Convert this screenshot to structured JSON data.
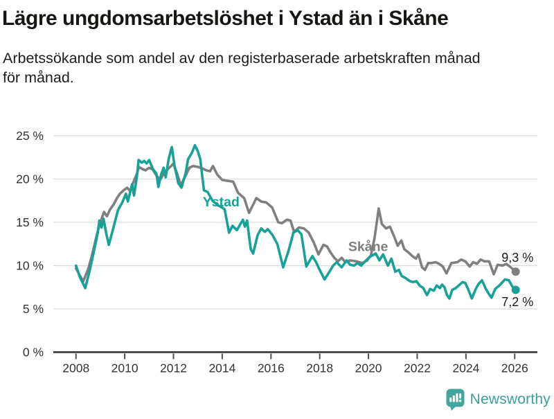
{
  "title": "Lägre ungdomsarbetslöshet i Ystad än i Skåne",
  "subtitle": {
    "line1": "Arbetssökande som andel av den registerbaserade arbetskraften månad",
    "line2": "för månad."
  },
  "footer": {
    "brand": "Newsworthy",
    "logo_icon": "bar-chart-speech-bubble-icon"
  },
  "colors": {
    "ystad": "#17a197",
    "skane": "#7f7f7f",
    "grid": "#dbdbdb",
    "axis": "#4d4d4d",
    "tick_label": "#333333",
    "value_label": "#1a1a1a",
    "brand_teal": "#44a59e",
    "background": "#ffffff"
  },
  "chart_data": {
    "type": "line",
    "unit": "%",
    "grid": "horizontal",
    "legend_position": "inline-labels",
    "xlim": [
      2007.07,
      2026.93
    ],
    "ylim": [
      0,
      25
    ],
    "x_ticks": [
      2008,
      2010,
      2012,
      2014,
      2016,
      2018,
      2020,
      2022,
      2024,
      2026
    ],
    "x_tick_labels": [
      "2008",
      "2010",
      "2012",
      "2014",
      "2016",
      "2018",
      "2020",
      "2022",
      "2024",
      "2026"
    ],
    "y_ticks": [
      0,
      5,
      10,
      15,
      20,
      25
    ],
    "y_tick_labels": [
      "0 %",
      "5 %",
      "10 %",
      "15 %",
      "20 %",
      "25 %"
    ],
    "series": [
      {
        "name": "Skåne",
        "color": "#7f7f7f",
        "label": {
          "text": "Skåne",
          "x": 2019.17,
          "y": 11.68
        },
        "end_label": {
          "text": "9,3 %",
          "x": 2025.46,
          "y": 10.44
        },
        "end_value": 9.3,
        "points": [
          [
            2008.0,
            9.7
          ],
          [
            2008.15,
            8.9
          ],
          [
            2008.3,
            8.2
          ],
          [
            2008.5,
            9.6
          ],
          [
            2008.65,
            11.1
          ],
          [
            2008.85,
            13.5
          ],
          [
            2009.0,
            15.0
          ],
          [
            2009.15,
            16.2
          ],
          [
            2009.27,
            15.7
          ],
          [
            2009.4,
            16.5
          ],
          [
            2009.55,
            17.1
          ],
          [
            2009.68,
            17.8
          ],
          [
            2009.8,
            18.3
          ],
          [
            2009.95,
            18.7
          ],
          [
            2010.1,
            19.0
          ],
          [
            2010.22,
            18.6
          ],
          [
            2010.35,
            19.6
          ],
          [
            2010.5,
            20.6
          ],
          [
            2010.58,
            21.4
          ],
          [
            2010.7,
            21.2
          ],
          [
            2010.85,
            21.0
          ],
          [
            2011.0,
            21.3
          ],
          [
            2011.15,
            21.1
          ],
          [
            2011.3,
            20.4
          ],
          [
            2011.45,
            19.9
          ],
          [
            2011.6,
            20.6
          ],
          [
            2011.75,
            21.1
          ],
          [
            2011.9,
            21.5
          ],
          [
            2012.0,
            21.8
          ],
          [
            2012.15,
            20.6
          ],
          [
            2012.3,
            19.3
          ],
          [
            2012.5,
            20.4
          ],
          [
            2012.65,
            21.3
          ],
          [
            2012.8,
            21.5
          ],
          [
            2013.0,
            21.4
          ],
          [
            2013.2,
            21.2
          ],
          [
            2013.35,
            21.0
          ],
          [
            2013.5,
            20.9
          ],
          [
            2013.62,
            21.5
          ],
          [
            2013.8,
            20.5
          ],
          [
            2014.0,
            19.9
          ],
          [
            2014.2,
            19.8
          ],
          [
            2014.45,
            19.7
          ],
          [
            2014.65,
            18.4
          ],
          [
            2014.9,
            17.8
          ],
          [
            2015.1,
            16.1
          ],
          [
            2015.4,
            17.8
          ],
          [
            2015.6,
            17.4
          ],
          [
            2015.8,
            17.3
          ],
          [
            2016.05,
            16.7
          ],
          [
            2016.3,
            15.0
          ],
          [
            2016.45,
            14.9
          ],
          [
            2016.65,
            15.3
          ],
          [
            2016.8,
            15.2
          ],
          [
            2016.95,
            13.9
          ],
          [
            2017.15,
            14.4
          ],
          [
            2017.35,
            14.3
          ],
          [
            2017.55,
            13.8
          ],
          [
            2017.75,
            12.7
          ],
          [
            2017.95,
            11.3
          ],
          [
            2018.15,
            12.4
          ],
          [
            2018.3,
            12.2
          ],
          [
            2018.45,
            11.5
          ],
          [
            2018.6,
            10.9
          ],
          [
            2018.75,
            10.5
          ],
          [
            2018.9,
            10.9
          ],
          [
            2019.05,
            10.4
          ],
          [
            2019.25,
            10.6
          ],
          [
            2019.5,
            10.5
          ],
          [
            2019.75,
            10.3
          ],
          [
            2019.95,
            10.6
          ],
          [
            2020.1,
            11.2
          ],
          [
            2020.25,
            13.2
          ],
          [
            2020.42,
            16.6
          ],
          [
            2020.55,
            14.8
          ],
          [
            2020.72,
            14.3
          ],
          [
            2020.88,
            14.5
          ],
          [
            2021.05,
            13.4
          ],
          [
            2021.2,
            12.3
          ],
          [
            2021.35,
            12.9
          ],
          [
            2021.47,
            11.9
          ],
          [
            2021.65,
            11.5
          ],
          [
            2021.8,
            11.1
          ],
          [
            2021.95,
            10.8
          ],
          [
            2022.05,
            11.3
          ],
          [
            2022.2,
            9.8
          ],
          [
            2022.32,
            9.5
          ],
          [
            2022.45,
            10.3
          ],
          [
            2022.6,
            10.3
          ],
          [
            2022.75,
            10.4
          ],
          [
            2022.9,
            10.2
          ],
          [
            2023.05,
            9.9
          ],
          [
            2023.2,
            9.1
          ],
          [
            2023.4,
            10.3
          ],
          [
            2023.65,
            10.4
          ],
          [
            2023.8,
            10.7
          ],
          [
            2023.97,
            10.5
          ],
          [
            2024.15,
            9.9
          ],
          [
            2024.3,
            10.4
          ],
          [
            2024.45,
            10.2
          ],
          [
            2024.6,
            10.7
          ],
          [
            2024.75,
            10.5
          ],
          [
            2024.95,
            10.5
          ],
          [
            2025.14,
            9.0
          ],
          [
            2025.3,
            10.1
          ],
          [
            2025.5,
            10.0
          ],
          [
            2025.65,
            10.2
          ],
          [
            2025.8,
            9.9
          ],
          [
            2026.04,
            9.3
          ]
        ]
      },
      {
        "name": "Ystad",
        "color": "#17a197",
        "label": {
          "text": "Ystad",
          "x": 2013.2,
          "y": 16.84
        },
        "end_label": {
          "text": "7,2 %",
          "x": 2025.46,
          "y": 5.32
        },
        "end_value": 7.2,
        "points": [
          [
            2008.0,
            10.0
          ],
          [
            2008.17,
            8.6
          ],
          [
            2008.38,
            7.4
          ],
          [
            2008.55,
            9.3
          ],
          [
            2008.7,
            11.2
          ],
          [
            2008.88,
            13.6
          ],
          [
            2008.96,
            15.2
          ],
          [
            2009.05,
            14.4
          ],
          [
            2009.13,
            15.4
          ],
          [
            2009.25,
            13.6
          ],
          [
            2009.35,
            12.4
          ],
          [
            2009.5,
            14.0
          ],
          [
            2009.63,
            15.4
          ],
          [
            2009.72,
            16.4
          ],
          [
            2009.9,
            17.3
          ],
          [
            2010.05,
            18.3
          ],
          [
            2010.13,
            17.4
          ],
          [
            2010.3,
            19.4
          ],
          [
            2010.38,
            18.1
          ],
          [
            2010.5,
            20.3
          ],
          [
            2010.57,
            22.2
          ],
          [
            2010.7,
            21.9
          ],
          [
            2010.8,
            22.1
          ],
          [
            2010.9,
            21.8
          ],
          [
            2011.0,
            22.2
          ],
          [
            2011.15,
            21.2
          ],
          [
            2011.3,
            20.6
          ],
          [
            2011.38,
            19.1
          ],
          [
            2011.5,
            20.6
          ],
          [
            2011.6,
            21.3
          ],
          [
            2011.68,
            20.2
          ],
          [
            2011.8,
            22.3
          ],
          [
            2011.93,
            23.7
          ],
          [
            2012.05,
            21.4
          ],
          [
            2012.2,
            19.5
          ],
          [
            2012.33,
            19.0
          ],
          [
            2012.5,
            20.7
          ],
          [
            2012.6,
            22.3
          ],
          [
            2012.75,
            23.0
          ],
          [
            2012.88,
            23.9
          ],
          [
            2013.0,
            23.2
          ],
          [
            2013.1,
            22.3
          ],
          [
            2013.25,
            18.7
          ],
          [
            2013.4,
            18.5
          ],
          [
            2013.6,
            17.5
          ],
          [
            2013.8,
            17.0
          ],
          [
            2014.0,
            16.7
          ],
          [
            2014.1,
            16.5
          ],
          [
            2014.28,
            13.8
          ],
          [
            2014.42,
            14.6
          ],
          [
            2014.6,
            14.1
          ],
          [
            2014.85,
            15.3
          ],
          [
            2014.93,
            14.5
          ],
          [
            2015.02,
            15.2
          ],
          [
            2015.17,
            11.9
          ],
          [
            2015.27,
            11.4
          ],
          [
            2015.45,
            13.5
          ],
          [
            2015.6,
            14.3
          ],
          [
            2015.75,
            13.9
          ],
          [
            2015.87,
            14.2
          ],
          [
            2016.07,
            13.5
          ],
          [
            2016.26,
            12.5
          ],
          [
            2016.5,
            9.8
          ],
          [
            2016.73,
            11.8
          ],
          [
            2016.92,
            13.8
          ],
          [
            2017.1,
            14.1
          ],
          [
            2017.25,
            13.6
          ],
          [
            2017.45,
            9.9
          ],
          [
            2017.7,
            11.1
          ],
          [
            2017.85,
            10.4
          ],
          [
            2018.0,
            9.5
          ],
          [
            2018.2,
            8.4
          ],
          [
            2018.4,
            9.3
          ],
          [
            2018.55,
            10.0
          ],
          [
            2018.7,
            10.4
          ],
          [
            2018.9,
            9.8
          ],
          [
            2019.1,
            10.6
          ],
          [
            2019.25,
            10.1
          ],
          [
            2019.4,
            10.0
          ],
          [
            2019.55,
            10.3
          ],
          [
            2019.7,
            10.0
          ],
          [
            2019.9,
            10.6
          ],
          [
            2020.05,
            11.0
          ],
          [
            2020.3,
            11.4
          ],
          [
            2020.45,
            10.6
          ],
          [
            2020.6,
            11.3
          ],
          [
            2020.8,
            10.0
          ],
          [
            2020.94,
            10.8
          ],
          [
            2021.1,
            9.3
          ],
          [
            2021.25,
            9.5
          ],
          [
            2021.36,
            8.8
          ],
          [
            2021.5,
            8.6
          ],
          [
            2021.7,
            8.2
          ],
          [
            2021.83,
            8.1
          ],
          [
            2021.97,
            8.2
          ],
          [
            2022.1,
            7.7
          ],
          [
            2022.25,
            7.4
          ],
          [
            2022.4,
            6.6
          ],
          [
            2022.53,
            7.3
          ],
          [
            2022.68,
            7.1
          ],
          [
            2022.8,
            7.7
          ],
          [
            2022.93,
            7.4
          ],
          [
            2023.02,
            7.8
          ],
          [
            2023.12,
            7.5
          ],
          [
            2023.22,
            6.6
          ],
          [
            2023.32,
            6.2
          ],
          [
            2023.44,
            7.2
          ],
          [
            2023.58,
            7.4
          ],
          [
            2023.7,
            7.7
          ],
          [
            2023.86,
            8.1
          ],
          [
            2023.97,
            8.0
          ],
          [
            2024.1,
            7.2
          ],
          [
            2024.24,
            6.2
          ],
          [
            2024.4,
            7.3
          ],
          [
            2024.52,
            7.9
          ],
          [
            2024.66,
            8.3
          ],
          [
            2024.8,
            7.4
          ],
          [
            2024.92,
            6.8
          ],
          [
            2025.05,
            6.3
          ],
          [
            2025.2,
            7.3
          ],
          [
            2025.37,
            7.7
          ],
          [
            2025.6,
            8.4
          ],
          [
            2025.76,
            8.3
          ],
          [
            2025.9,
            7.6
          ],
          [
            2026.04,
            7.2
          ]
        ]
      }
    ]
  }
}
